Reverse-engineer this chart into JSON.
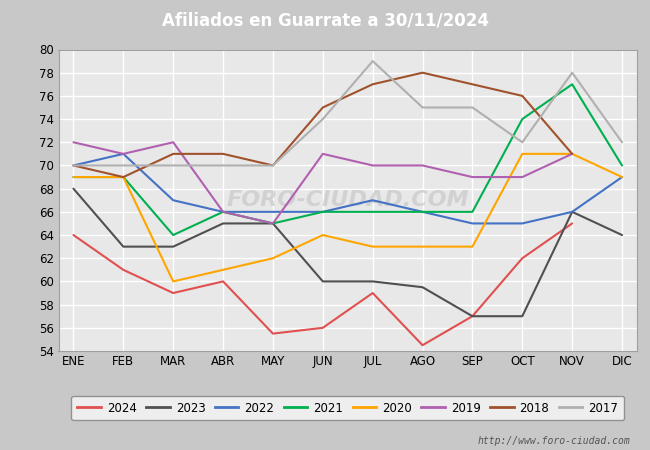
{
  "title": "Afiliados en Guarrate a 30/11/2024",
  "title_color": "#ffffff",
  "title_bg_color": "#4d7ebf",
  "xlabel": "",
  "ylabel": "",
  "ylim": [
    54,
    80
  ],
  "yticks": [
    54,
    56,
    58,
    60,
    62,
    64,
    66,
    68,
    70,
    72,
    74,
    76,
    78,
    80
  ],
  "months": [
    "ENE",
    "FEB",
    "MAR",
    "ABR",
    "MAY",
    "JUN",
    "JUL",
    "AGO",
    "SEP",
    "OCT",
    "NOV",
    "DIC"
  ],
  "watermark": "FORO-CIUDAD.COM",
  "url": "http://www.foro-ciudad.com",
  "series": [
    {
      "label": "2024",
      "color": "#e05050",
      "data": [
        64,
        61,
        59,
        60,
        55.5,
        56,
        59,
        54.5,
        57,
        62,
        65,
        null
      ]
    },
    {
      "label": "2023",
      "color": "#505050",
      "data": [
        68,
        63,
        63,
        65,
        65,
        60,
        60,
        59.5,
        57,
        57,
        66,
        64
      ]
    },
    {
      "label": "2022",
      "color": "#4472c4",
      "data": [
        70,
        71,
        67,
        66,
        66,
        66,
        67,
        66,
        65,
        65,
        66,
        69
      ]
    },
    {
      "label": "2021",
      "color": "#00b050",
      "data": [
        69,
        69,
        64,
        66,
        65,
        66,
        66,
        66,
        66,
        74,
        77,
        70
      ]
    },
    {
      "label": "2020",
      "color": "#ffa500",
      "data": [
        69,
        69,
        60,
        61,
        62,
        64,
        63,
        63,
        63,
        71,
        71,
        69
      ]
    },
    {
      "label": "2019",
      "color": "#b060b0",
      "data": [
        72,
        71,
        72,
        66,
        65,
        71,
        70,
        70,
        69,
        69,
        71,
        null
      ]
    },
    {
      "label": "2018",
      "color": "#a0522d",
      "data": [
        70,
        69,
        71,
        71,
        70,
        75,
        77,
        78,
        77,
        76,
        71,
        null
      ]
    },
    {
      "label": "2017",
      "color": "#b0b0b0",
      "data": [
        70,
        70,
        70,
        70,
        70,
        74,
        79,
        75,
        75,
        72,
        78,
        72
      ]
    }
  ],
  "legend_box_color": "#f8f8f8",
  "legend_border_color": "#808080",
  "fig_bg_color": "#c8c8c8",
  "plot_bg_color": "#e8e8e8",
  "grid_color": "#ffffff"
}
